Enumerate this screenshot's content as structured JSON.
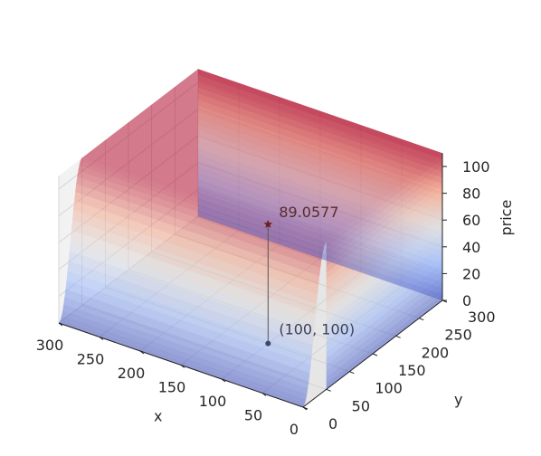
{
  "chart_data": {
    "type": "surface3d",
    "xlabel": "x",
    "ylabel": "y",
    "zlabel": "price",
    "xlim": [
      0,
      300
    ],
    "ylim": [
      0,
      300
    ],
    "zlim": [
      0,
      110
    ],
    "x_ticks": [
      "0",
      "50",
      "100",
      "150",
      "200",
      "250",
      "300"
    ],
    "y_ticks": [
      "0",
      "50",
      "100",
      "150",
      "200",
      "250",
      "300"
    ],
    "z_ticks": [
      "0",
      "20",
      "40",
      "60",
      "80",
      "100"
    ],
    "surface": {
      "shape": "plateau",
      "base": 0,
      "plateau_height": 110,
      "plateau_x_extent": [
        0,
        300
      ],
      "plateau_y_extent": [
        50,
        300
      ],
      "colormap": "coolwarm",
      "alpha": 0.5
    },
    "annotation": {
      "point": [
        100,
        100
      ],
      "point_label": "(100, 100)",
      "value": 89.0577,
      "value_label": "89.0577"
    },
    "grid": true
  }
}
